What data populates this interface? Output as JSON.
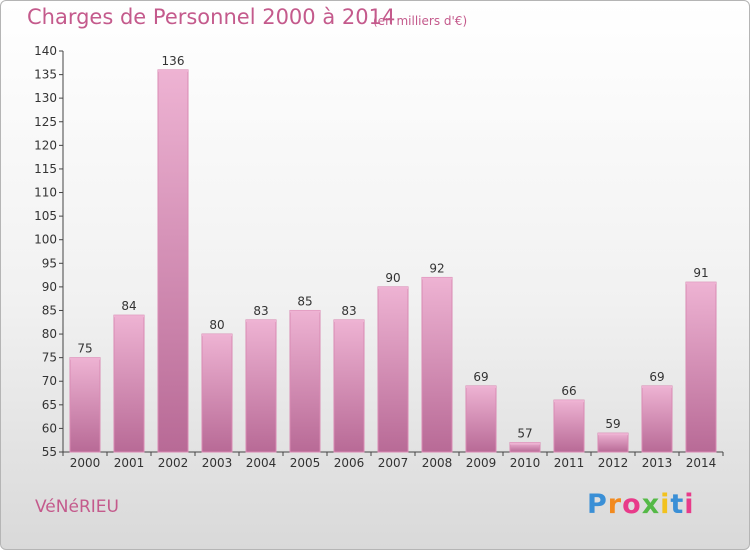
{
  "header": {
    "title": "Charges de Personnel 2000 à 2014",
    "subtitle": "(en milliers d'€)"
  },
  "footer": {
    "town": "VéNéRIEU",
    "logo": [
      "P",
      "r",
      "o",
      "x",
      "i",
      "t",
      "i"
    ],
    "logo_colors": [
      "#3a8fd6",
      "#f28a1e",
      "#e83b8a",
      "#55b947",
      "#f2c21e",
      "#3a8fd6",
      "#e83b8a"
    ]
  },
  "chart_data": {
    "type": "bar",
    "title": "Charges de Personnel 2000 à 2014",
    "subtitle": "(en milliers d'€)",
    "categories": [
      "2000",
      "2001",
      "2002",
      "2003",
      "2004",
      "2005",
      "2006",
      "2007",
      "2008",
      "2009",
      "2010",
      "2011",
      "2012",
      "2013",
      "2014"
    ],
    "values": [
      75,
      84,
      136,
      80,
      83,
      85,
      83,
      90,
      92,
      69,
      57,
      66,
      59,
      69,
      91
    ],
    "ylim": [
      55,
      140
    ],
    "yticks": [
      55,
      60,
      65,
      70,
      75,
      80,
      85,
      90,
      95,
      100,
      105,
      110,
      115,
      120,
      125,
      130,
      135,
      140
    ],
    "grid": false,
    "bar_color": "#d98ab3",
    "bar_color_light": "#eeb3d3",
    "bar_color_dark": "#b86a96"
  }
}
